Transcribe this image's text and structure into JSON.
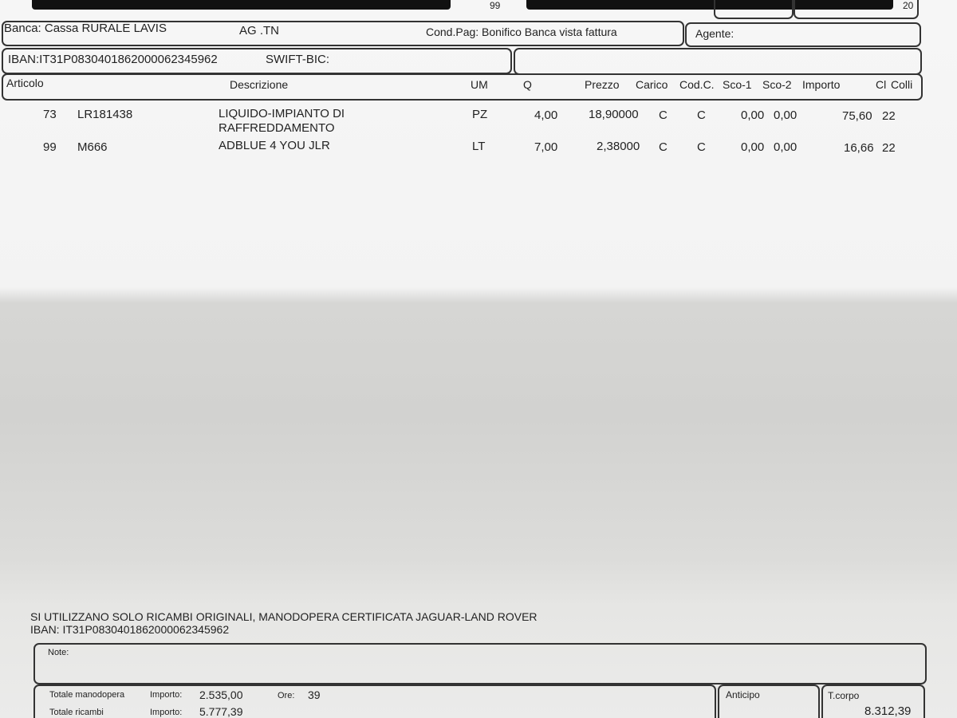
{
  "header": {
    "partial_left": "99",
    "partial_right": "20"
  },
  "bank": {
    "banca": "Banca: Cassa RURALE LAVIS",
    "ag": "AG .TN",
    "cond_pag": "Cond.Pag: Bonifico Banca vista fattura",
    "agente": "Agente:",
    "iban": "IBAN:IT31P0830401862000062345962",
    "swift": "SWIFT-BIC:"
  },
  "table": {
    "columns": [
      "Articolo",
      "Descrizione",
      "UM",
      "Q",
      "Prezzo",
      "Carico",
      "Cod.C.",
      "Sco-1",
      "Sco-2",
      "Importo",
      "Cl",
      "Colli"
    ],
    "rows": [
      {
        "num": "73",
        "code": "LR181438",
        "desc1": "LIQUIDO-IMPIANTO DI",
        "desc2": "RAFFREDDAMENTO",
        "um": "PZ",
        "q": "4,00",
        "prezzo": "18,90000",
        "carico": "C",
        "codc": "C",
        "sco1": "0,00",
        "sco2": "0,00",
        "importo": "75,60",
        "cl": "22"
      },
      {
        "num": "99",
        "code": "M666",
        "desc1": "ADBLUE 4 YOU JLR",
        "desc2": "",
        "um": "LT",
        "q": "7,00",
        "prezzo": "2,38000",
        "carico": "C",
        "codc": "C",
        "sco1": "0,00",
        "sco2": "0,00",
        "importo": "16,66",
        "cl": "22"
      }
    ]
  },
  "footer": {
    "notice": "SI UTILIZZANO SOLO RICAMBI ORIGINALI, MANODOPERA CERTIFICATA JAGUAR-LAND ROVER",
    "iban": "IBAN: IT31P0830401862000062345962",
    "note_label": "Note:",
    "manodopera_label": "Totale manodopera",
    "manodopera_importo_label": "Importo:",
    "manodopera_importo": "2.535,00",
    "ore_label": "Ore:",
    "ore": "39",
    "ricambi_label": "Totale ricambi",
    "ricambi_importo_label": "Importo:",
    "ricambi_importo": "5.777,39",
    "anticipo_label": "Anticipo",
    "tcorpo_label": "T.corpo",
    "tcorpo": "8.312,39"
  }
}
